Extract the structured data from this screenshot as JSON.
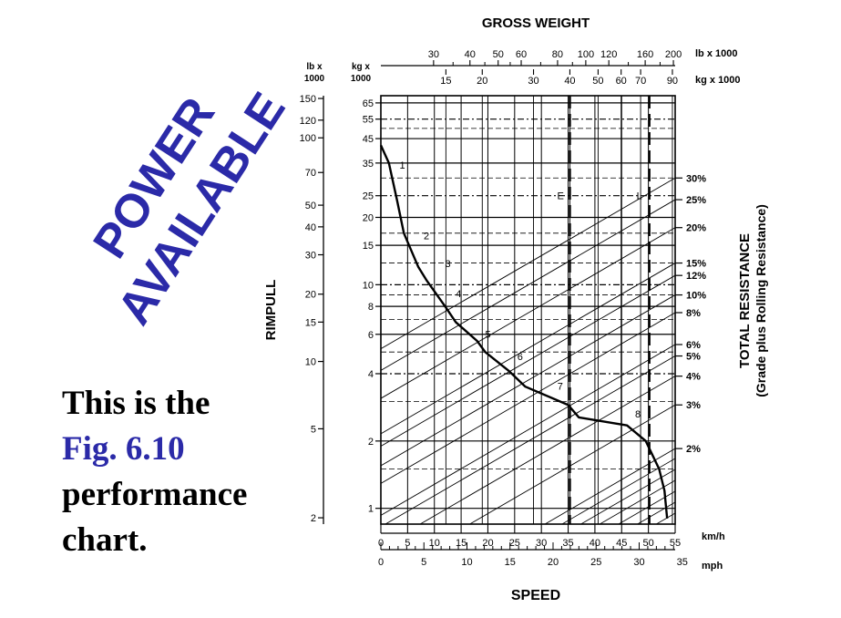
{
  "slide": {
    "watermark_line1": "POWER",
    "watermark_line2": "AVAILABLE",
    "caption_line1": "This is the",
    "caption_fig": "Fig. 6.10",
    "caption_line3": "performance",
    "caption_line4": "chart.",
    "accent_color": "#2b2aa8"
  },
  "chart_data": {
    "type": "line",
    "title": "GROSS WEIGHT",
    "xlabel": "SPEED",
    "ylabel": "RIMPULL",
    "right_label_line1": "TOTAL RESISTANCE",
    "right_label_line2": "(Grade plus Rolling Resistance)",
    "left_axis_units": {
      "lb": "lb x 1000",
      "kg": "kg x 1000"
    },
    "left_axis_unit_lines": {
      "lb": [
        "lb x",
        "1000"
      ],
      "kg": [
        "kg x",
        "1000"
      ]
    },
    "rimpull_lb_ticks": [
      "150",
      "120",
      "100",
      "70",
      "50",
      "40",
      "30",
      "20",
      "15",
      "10",
      "5",
      "2"
    ],
    "rimpull_lb_values": [
      150,
      120,
      100,
      70,
      50,
      40,
      30,
      20,
      15,
      10,
      5,
      2
    ],
    "rimpull_kg_ticks": [
      "65",
      "55",
      "45",
      "35",
      "25",
      "20",
      "15",
      "10",
      "8",
      "6",
      "4",
      "2",
      "1"
    ],
    "rimpull_kg_values": [
      65,
      55,
      45,
      35,
      25,
      20,
      15,
      10,
      8,
      6,
      4,
      2,
      1
    ],
    "gross_weight_lb_label": "lb x 1000",
    "gross_weight_lb_ticks": [
      "30",
      "40",
      "50",
      "60",
      "80",
      "100",
      "120",
      "160",
      "200"
    ],
    "gross_weight_kg_label": "kg x 1000",
    "gross_weight_kg_ticks": [
      "15",
      "20",
      "30",
      "40",
      "50",
      "60",
      "70",
      "90"
    ],
    "speed_kmh_label": "km/h",
    "speed_kmh_ticks": [
      "0",
      "5",
      "10",
      "15",
      "20",
      "25",
      "30",
      "35",
      "40",
      "45",
      "50",
      "55"
    ],
    "speed_mph_label": "mph",
    "speed_mph_ticks": [
      "0",
      "5",
      "10",
      "15",
      "20",
      "25",
      "30",
      "35"
    ],
    "xlim_kmh": [
      0,
      55
    ],
    "ylim_kg": [
      1,
      70
    ],
    "y_scale": "log",
    "grid": true,
    "total_resistance_labels": [
      "30%",
      "25%",
      "20%",
      "15%",
      "12%",
      "10%",
      "8%",
      "6%",
      "5%",
      "4%",
      "3%",
      "2%"
    ],
    "total_resistance_values": [
      30,
      25,
      20,
      15,
      12,
      10,
      8,
      6,
      5,
      4,
      3,
      2
    ],
    "weight_markers": [
      {
        "label": "E",
        "gross_weight_kg": 40
      },
      {
        "label": "L",
        "gross_weight_kg": 75
      }
    ],
    "gear_labels": [
      "1",
      "2",
      "3",
      "4",
      "5",
      "6",
      "7",
      "8"
    ],
    "gear_label_points": [
      {
        "speed_kmh": 3.5,
        "rimpull_kg": 33
      },
      {
        "speed_kmh": 8,
        "rimpull_kg": 16
      },
      {
        "speed_kmh": 12,
        "rimpull_kg": 12
      },
      {
        "speed_kmh": 14,
        "rimpull_kg": 8.8
      },
      {
        "speed_kmh": 19.5,
        "rimpull_kg": 5.8
      },
      {
        "speed_kmh": 25.5,
        "rimpull_kg": 4.6
      },
      {
        "speed_kmh": 33,
        "rimpull_kg": 3.4
      },
      {
        "speed_kmh": 47.5,
        "rimpull_kg": 2.55
      }
    ],
    "rimpull_curve": [
      {
        "speed_kmh": 0,
        "rimpull_kg": 42
      },
      {
        "speed_kmh": 1.5,
        "rimpull_kg": 35
      },
      {
        "speed_kmh": 3,
        "rimpull_kg": 24
      },
      {
        "speed_kmh": 4.3,
        "rimpull_kg": 17
      },
      {
        "speed_kmh": 7,
        "rimpull_kg": 12
      },
      {
        "speed_kmh": 8.5,
        "rimpull_kg": 10.5
      },
      {
        "speed_kmh": 12,
        "rimpull_kg": 8
      },
      {
        "speed_kmh": 14,
        "rimpull_kg": 6.8
      },
      {
        "speed_kmh": 18,
        "rimpull_kg": 5.6
      },
      {
        "speed_kmh": 19.5,
        "rimpull_kg": 5
      },
      {
        "speed_kmh": 24,
        "rimpull_kg": 4.1
      },
      {
        "speed_kmh": 27,
        "rimpull_kg": 3.5
      },
      {
        "speed_kmh": 35,
        "rimpull_kg": 2.9
      },
      {
        "speed_kmh": 37,
        "rimpull_kg": 2.55
      },
      {
        "speed_kmh": 46,
        "rimpull_kg": 2.35
      },
      {
        "speed_kmh": 49.5,
        "rimpull_kg": 2
      },
      {
        "speed_kmh": 52,
        "rimpull_kg": 1.5
      },
      {
        "speed_kmh": 53,
        "rimpull_kg": 1.2
      },
      {
        "speed_kmh": 53.5,
        "rimpull_kg": 0.9
      }
    ]
  }
}
